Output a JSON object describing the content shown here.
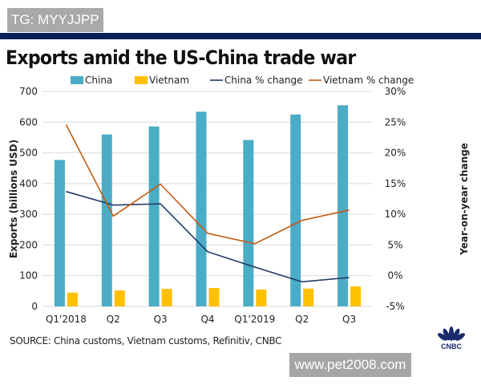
{
  "watermark_top": "TG: MYYJJPP",
  "watermark_bottom": "www.pet2008.com",
  "logo_text": "CNBC",
  "chart_data": {
    "type": "bar",
    "title": "Exports amid the US-China trade war",
    "source": "SOURCE: China customs, Vietnam customs, Refinitiv, CNBC",
    "categories": [
      "Q1'2018",
      "Q2",
      "Q3",
      "Q4",
      "Q1'2019",
      "Q2",
      "Q3"
    ],
    "ylabel": "Exports (billions USD)",
    "y2label": "Year-on-year change",
    "ylim": [
      0,
      700
    ],
    "yticks": [
      "0",
      "100",
      "200",
      "300",
      "400",
      "500",
      "600",
      "700"
    ],
    "y2lim": [
      -5,
      30
    ],
    "y2ticks": [
      "-5%",
      "0%",
      "5%",
      "10%",
      "15%",
      "20%",
      "25%",
      "30%"
    ],
    "grid": true,
    "legend_placement": "top",
    "series": [
      {
        "name": "China",
        "type": "bar",
        "axis": "left",
        "color": "#4bacc6",
        "values": [
          477,
          560,
          586,
          634,
          542,
          625,
          655
        ]
      },
      {
        "name": "Vietnam",
        "type": "bar",
        "axis": "left",
        "color": "#ffc000",
        "values": [
          45,
          52,
          57,
          60,
          55,
          58,
          65
        ]
      },
      {
        "name": "China % change",
        "type": "line",
        "axis": "right",
        "color": "#1f3864",
        "values": [
          13.7,
          11.5,
          11.7,
          3.9,
          1.4,
          -1.0,
          -0.3
        ]
      },
      {
        "name": "Vietnam % change",
        "type": "line",
        "axis": "right",
        "color": "#c55a11",
        "values": [
          24.6,
          9.7,
          14.9,
          6.9,
          5.2,
          9.0,
          10.7
        ]
      }
    ]
  }
}
